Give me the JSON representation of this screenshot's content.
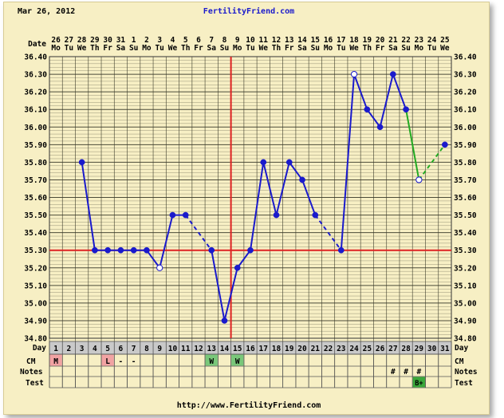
{
  "header": {
    "date": "Mar 26, 2012",
    "site": "FertilityFriend.com",
    "footer_url": "http://www.FertilityFriend.com"
  },
  "rows": {
    "date": "Date",
    "day": "Day",
    "cm": "CM",
    "notes": "Notes",
    "test": "Test"
  },
  "chart_data": {
    "type": "line",
    "calendar_dates": [
      "26",
      "27",
      "28",
      "29",
      "30",
      "31",
      "1",
      "2",
      "3",
      "4",
      "5",
      "6",
      "7",
      "8",
      "9",
      "10",
      "11",
      "12",
      "13",
      "14",
      "15",
      "16",
      "17",
      "18",
      "19",
      "20",
      "21",
      "22",
      "23",
      "24",
      "25"
    ],
    "weekdays": [
      "Mo",
      "Tu",
      "We",
      "Th",
      "Fr",
      "Sa",
      "Su",
      "Mo",
      "Tu",
      "We",
      "Th",
      "Fr",
      "Sa",
      "Su",
      "Mo",
      "Tu",
      "We",
      "Th",
      "Fr",
      "Sa",
      "Su",
      "Mo",
      "Tu",
      "We",
      "Th",
      "Fr",
      "Sa",
      "Su",
      "Mo",
      "Tu",
      "We"
    ],
    "cycle_days": [
      "1",
      "2",
      "3",
      "4",
      "5",
      "6",
      "7",
      "8",
      "9",
      "10",
      "11",
      "12",
      "13",
      "14",
      "15",
      "16",
      "17",
      "18",
      "19",
      "20",
      "21",
      "22",
      "23",
      "24",
      "25",
      "26",
      "27",
      "28",
      "29",
      "30",
      "31"
    ],
    "y_ticks": [
      "36.40",
      "36.30",
      "36.20",
      "36.10",
      "36.00",
      "35.90",
      "35.80",
      "35.70",
      "35.60",
      "35.50",
      "35.40",
      "35.30",
      "35.20",
      "35.10",
      "35.00",
      "34.90",
      "34.80"
    ],
    "ylim": [
      34.8,
      36.4
    ],
    "temperatures": [
      {
        "day": 3,
        "temp": 35.8,
        "open": false
      },
      {
        "day": 4,
        "temp": 35.3,
        "open": false
      },
      {
        "day": 5,
        "temp": 35.3,
        "open": false
      },
      {
        "day": 6,
        "temp": 35.3,
        "open": false
      },
      {
        "day": 7,
        "temp": 35.3,
        "open": false
      },
      {
        "day": 8,
        "temp": 35.3,
        "open": false
      },
      {
        "day": 9,
        "temp": 35.2,
        "open": true
      },
      {
        "day": 10,
        "temp": 35.5,
        "open": false
      },
      {
        "day": 11,
        "temp": 35.5,
        "open": false
      },
      {
        "day": 13,
        "temp": 35.3,
        "open": false
      },
      {
        "day": 14,
        "temp": 34.9,
        "open": false
      },
      {
        "day": 15,
        "temp": 35.2,
        "open": false
      },
      {
        "day": 16,
        "temp": 35.3,
        "open": false
      },
      {
        "day": 17,
        "temp": 35.8,
        "open": false
      },
      {
        "day": 18,
        "temp": 35.5,
        "open": false
      },
      {
        "day": 19,
        "temp": 35.8,
        "open": false
      },
      {
        "day": 20,
        "temp": 35.7,
        "open": false
      },
      {
        "day": 21,
        "temp": 35.5,
        "open": false
      },
      {
        "day": 23,
        "temp": 35.3,
        "open": false
      },
      {
        "day": 24,
        "temp": 36.3,
        "open": true
      },
      {
        "day": 25,
        "temp": 36.1,
        "open": false
      },
      {
        "day": 26,
        "temp": 36.0,
        "open": false
      },
      {
        "day": 27,
        "temp": 36.3,
        "open": false
      },
      {
        "day": 28,
        "temp": 36.1,
        "open": false
      },
      {
        "day": 29,
        "temp": 35.7,
        "open": true
      },
      {
        "day": 31,
        "temp": 35.9,
        "open": false
      }
    ],
    "dashed_segments": [
      [
        11,
        13
      ],
      [
        21,
        23
      ],
      [
        29,
        31
      ]
    ],
    "green_segments": [
      [
        28,
        29
      ]
    ],
    "coverline": 35.3,
    "ovulation_day": 15,
    "cm_entries": [
      {
        "day": 1,
        "label": "M",
        "color": "#f2a3a3"
      },
      {
        "day": 5,
        "label": "L",
        "color": "#f2a3a3"
      },
      {
        "day": 6,
        "label": "-",
        "color": ""
      },
      {
        "day": 7,
        "label": "-",
        "color": ""
      },
      {
        "day": 13,
        "label": "W",
        "color": "#79c779"
      },
      {
        "day": 15,
        "label": "W",
        "color": "#79c779"
      }
    ],
    "notes_entries": [
      {
        "day": 27,
        "label": "#"
      },
      {
        "day": 28,
        "label": "#"
      },
      {
        "day": 29,
        "label": "#"
      }
    ],
    "test_entries": [
      {
        "day": 29,
        "label": "B+",
        "color": "#3aa83a"
      }
    ],
    "colors": {
      "line": "#1a1acc",
      "point": "#1a1acc",
      "green_line": "#22aa22",
      "coverline": "#dd2222",
      "ovulation": "#dd2222",
      "grid": "#3a3a2a",
      "day_row": "#c9c9c9"
    }
  }
}
